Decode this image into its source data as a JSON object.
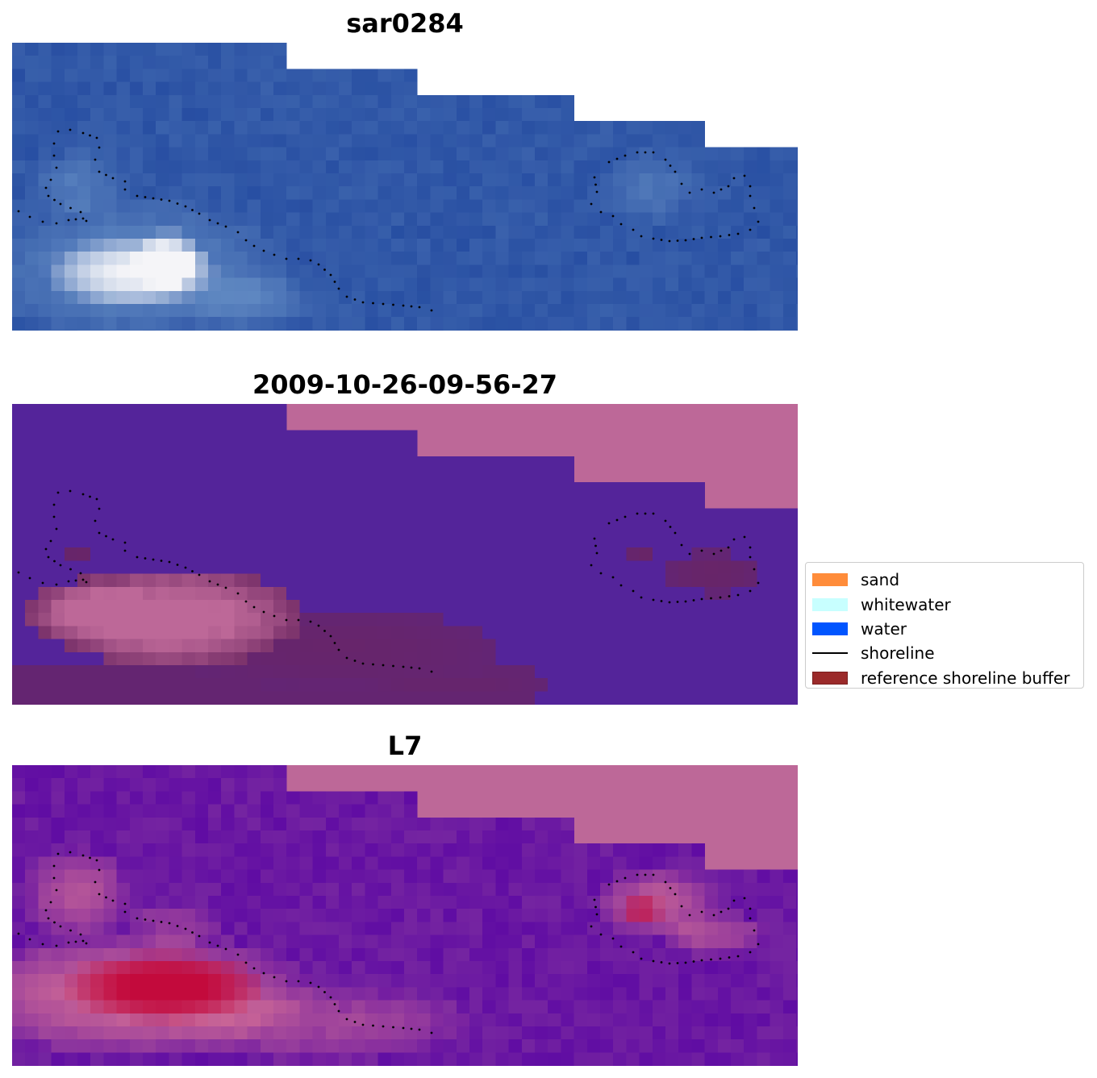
{
  "panels": [
    {
      "title": "sar0284",
      "kind": "rgb"
    },
    {
      "title": "2009-10-26-09-56-27",
      "kind": "classified"
    },
    {
      "title": "L7",
      "kind": "probability"
    }
  ],
  "legend": {
    "placement": "right-center",
    "items": [
      {
        "label": "sand",
        "type": "patch",
        "color": "#ff8c3a"
      },
      {
        "label": "whitewater",
        "type": "patch",
        "color": "#c8ffff"
      },
      {
        "label": "water",
        "type": "patch",
        "color": "#0055ff"
      },
      {
        "label": "shoreline",
        "type": "line",
        "color": "#000000"
      },
      {
        "label": "reference shoreline buffer",
        "type": "patch",
        "color": "#9b2a2a"
      }
    ]
  },
  "colors": {
    "nodata": "#bd6898",
    "water_class": "#54249a",
    "rgb_base": "#2c53a4",
    "shoreline_dots": "#000000"
  }
}
